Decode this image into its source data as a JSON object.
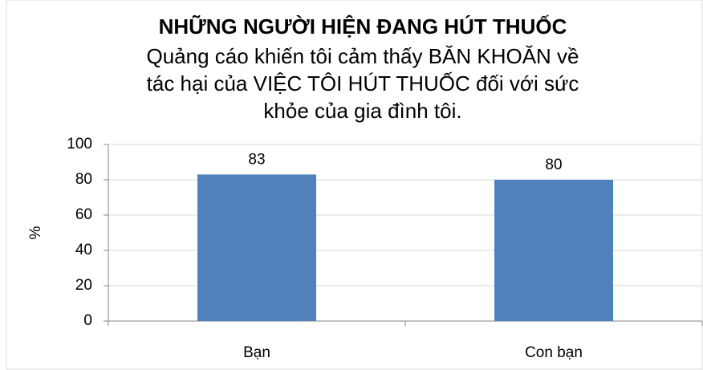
{
  "chart_data": {
    "type": "bar",
    "title": "NHỮNG NGƯỜI HIỆN ĐANG HÚT THUỐC",
    "subtitle": [
      "Quảng cáo khiến tôi cảm thấy BĂN KHOĂN về",
      "tác hại của VIỆC TÔI HÚT THUỐC đối với sức",
      "khỏe của gia đình tôi."
    ],
    "y_label": "%",
    "categories": [
      "Bạn",
      "Con bạn"
    ],
    "values": [
      83,
      80
    ],
    "color": "#4f81bd",
    "ylim": [
      0,
      100
    ],
    "yticks": [
      0,
      20,
      40,
      60,
      80,
      100
    ],
    "grid": true
  }
}
